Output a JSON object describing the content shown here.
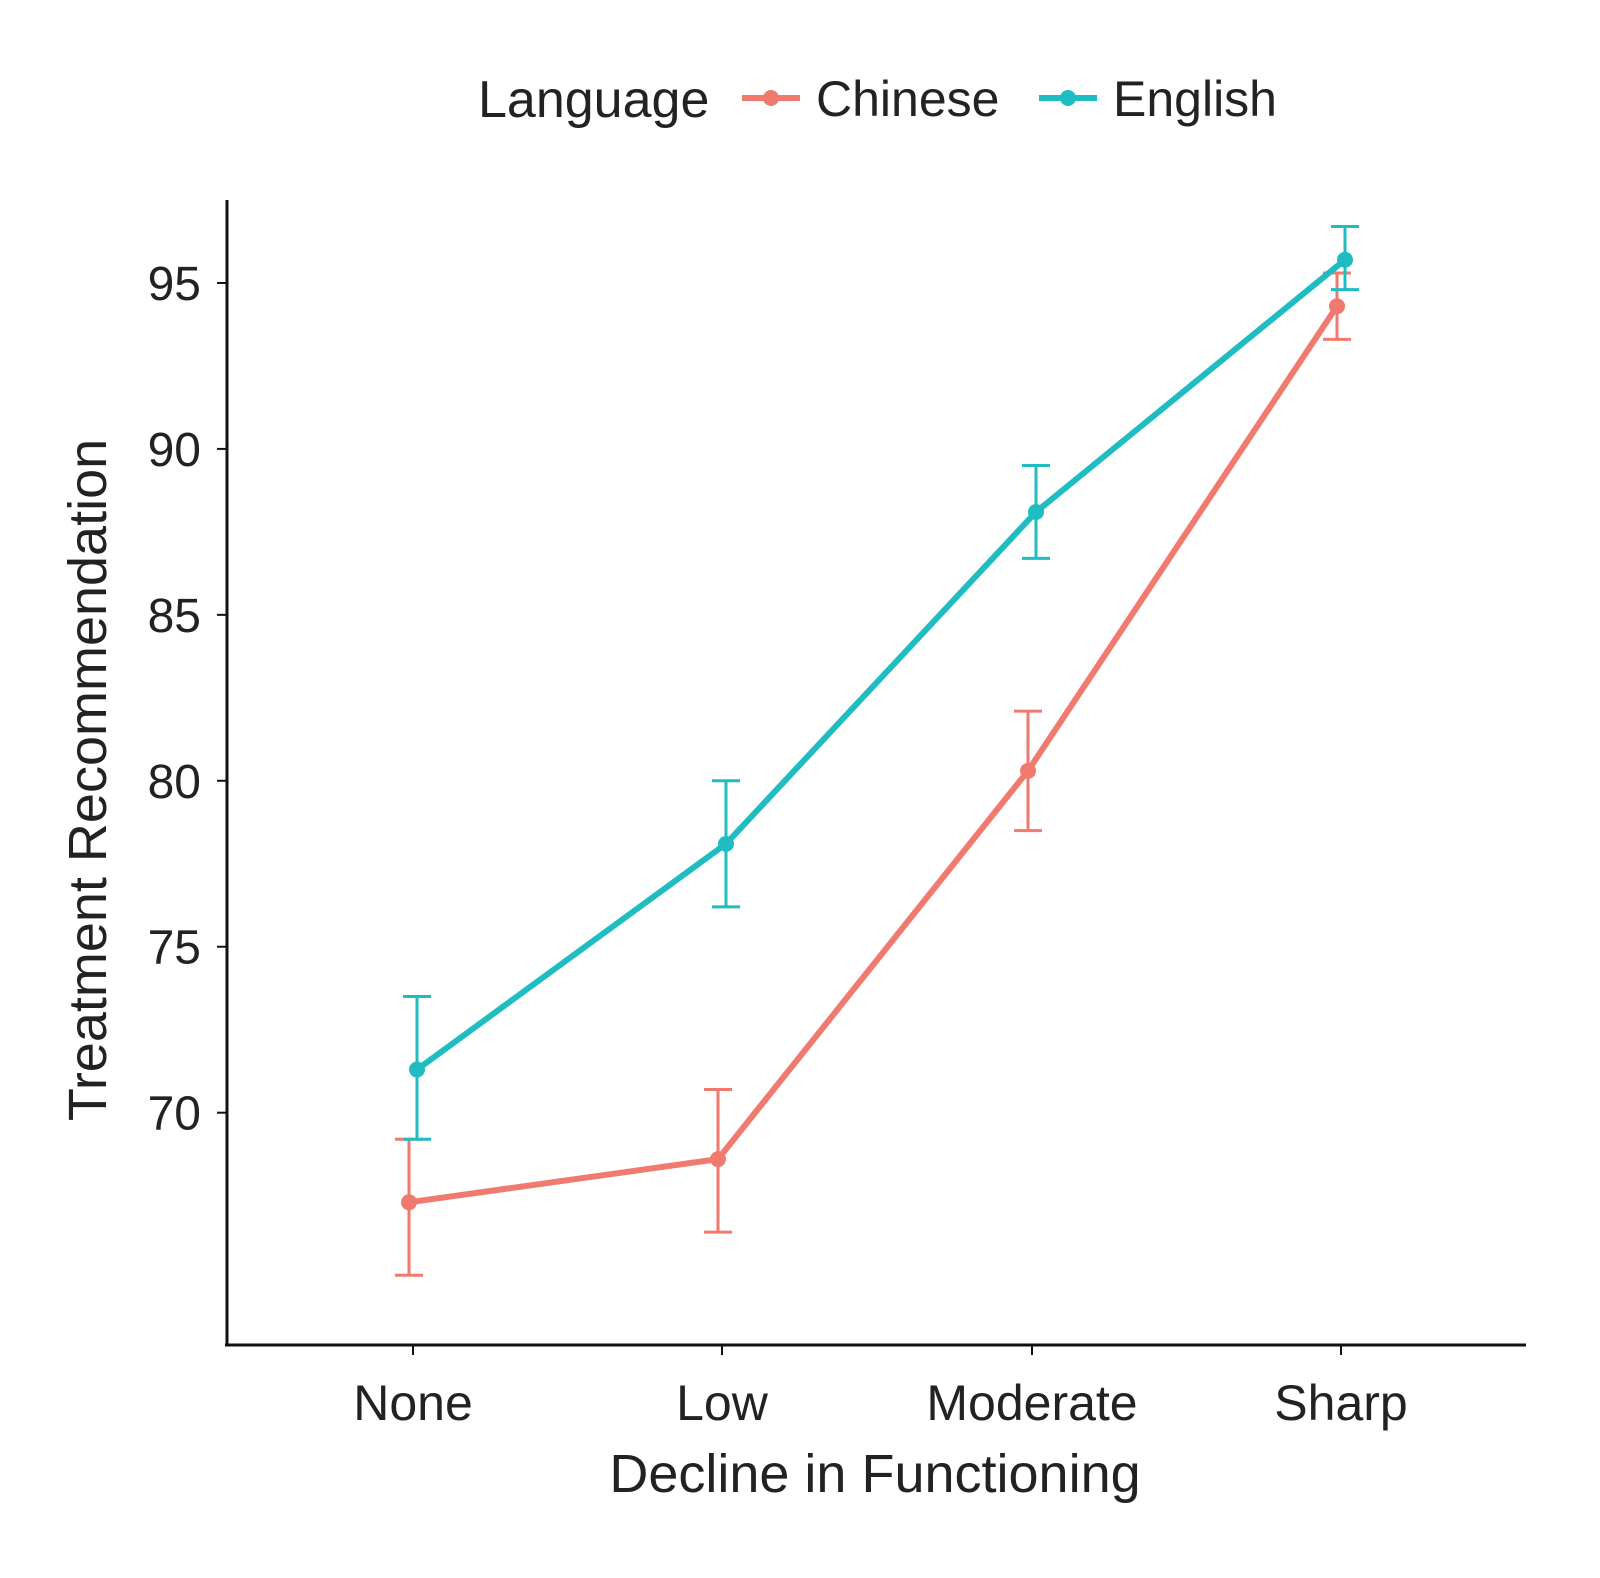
{
  "chart_data": {
    "type": "line",
    "title": "",
    "xlabel": "Decline in Functioning",
    "ylabel": "Treatment Recommendation",
    "categories": [
      "None",
      "Low",
      "Moderate",
      "Sharp"
    ],
    "yticks": [
      "70",
      "75",
      "80",
      "85",
      "90",
      "95"
    ],
    "ylim": [
      63,
      97.5
    ],
    "grid": false,
    "legend": {
      "title": "Language",
      "position": "top"
    },
    "series": [
      {
        "name": "Chinese",
        "color": "#F07A6E",
        "values": [
          67.3,
          68.6,
          80.3,
          94.3
        ],
        "error_low": [
          65.1,
          66.4,
          78.5,
          93.3
        ],
        "error_high": [
          69.2,
          70.7,
          82.1,
          95.3
        ]
      },
      {
        "name": "English",
        "color": "#1FBDC2",
        "values": [
          71.3,
          78.1,
          88.1,
          95.7
        ],
        "error_low": [
          69.2,
          76.2,
          86.7,
          94.8
        ],
        "error_high": [
          73.5,
          80.0,
          89.5,
          96.7
        ]
      }
    ]
  }
}
